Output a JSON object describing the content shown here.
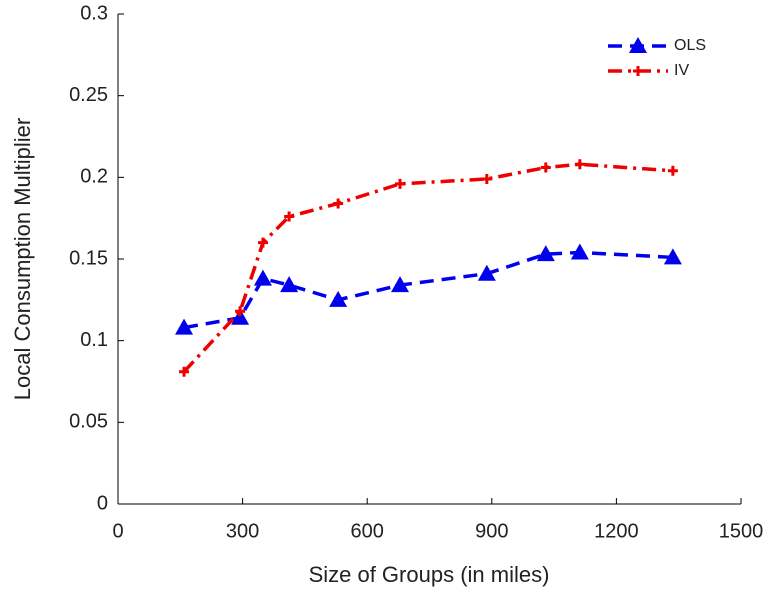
{
  "chart_data": {
    "type": "line",
    "x_label": "Size of Groups (in miles)",
    "y_label": "Local Consumption Multiplier",
    "xlim": [
      0,
      1500
    ],
    "xticks": [
      0,
      300,
      600,
      900,
      1200,
      1500
    ],
    "ylim": [
      0,
      0.3
    ],
    "yticks": [
      0,
      0.05,
      0.1,
      0.15,
      0.2,
      0.25,
      0.3
    ],
    "legend": "upper right",
    "series": [
      {
        "name": "OLS",
        "color": "#0000ee",
        "marker": "triangle",
        "dash": "dashed",
        "x": [
          159,
          294,
          349,
          412,
          530,
          679,
          888,
          1030,
          1112,
          1336
        ],
        "values": [
          0.108,
          0.114,
          0.138,
          0.134,
          0.125,
          0.134,
          0.141,
          0.153,
          0.154,
          0.151
        ]
      },
      {
        "name": "IV",
        "color": "#ee0000",
        "marker": "plus",
        "dash": "dashdot",
        "x": [
          159,
          294,
          349,
          412,
          530,
          679,
          888,
          1030,
          1112,
          1336
        ],
        "values": [
          0.081,
          0.118,
          0.16,
          0.176,
          0.184,
          0.196,
          0.199,
          0.206,
          0.208,
          0.204
        ]
      }
    ]
  }
}
